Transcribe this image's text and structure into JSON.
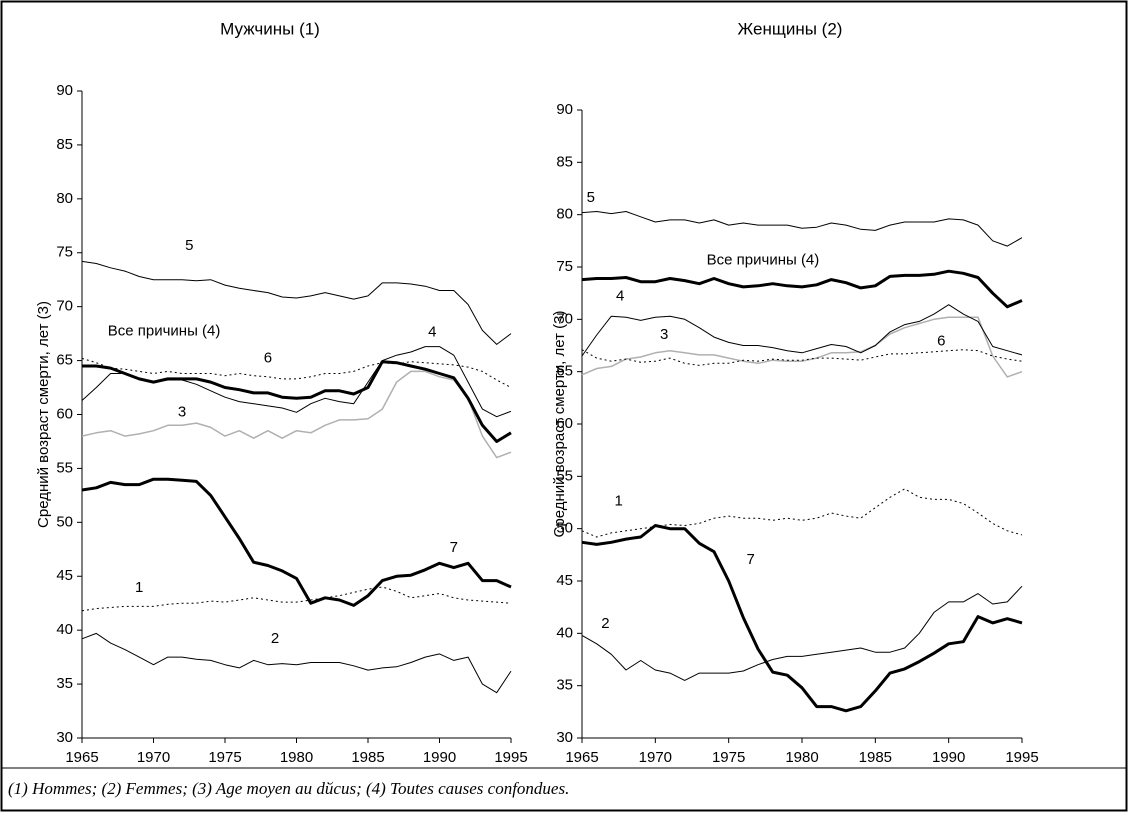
{
  "chart_data": [
    {
      "type": "line",
      "title": "Мужчины (1)",
      "ylabel": "Средний возраст смерти, лет (3)",
      "x": [
        1965,
        1966,
        1967,
        1968,
        1969,
        1970,
        1971,
        1972,
        1973,
        1974,
        1975,
        1976,
        1977,
        1978,
        1979,
        1980,
        1981,
        1982,
        1983,
        1984,
        1985,
        1986,
        1987,
        1988,
        1989,
        1990,
        1991,
        1992,
        1993,
        1994,
        1995
      ],
      "xlim": [
        1965,
        1995
      ],
      "xticks": [
        1965,
        1970,
        1975,
        1980,
        1985,
        1990,
        1995
      ],
      "ylim": [
        30,
        90
      ],
      "yticks": [
        30,
        35,
        40,
        45,
        50,
        55,
        60,
        65,
        70,
        75,
        80,
        85,
        90
      ],
      "annotations": [
        {
          "text": "Все причины (4)"
        }
      ],
      "series": [
        {
          "name": "1",
          "color": "#000000",
          "dash": "dotted",
          "linewidth": 1,
          "values": [
            41.8,
            42,
            42.1,
            42.2,
            42.2,
            42.2,
            42.4,
            42.5,
            42.5,
            42.7,
            42.6,
            42.8,
            43,
            42.8,
            42.6,
            42.6,
            42.8,
            43,
            43.2,
            43.5,
            43.8,
            44,
            43.6,
            43,
            43.2,
            43.4,
            43,
            42.8,
            42.7,
            42.6,
            42.5
          ]
        },
        {
          "name": "2",
          "color": "#000000",
          "linewidth": 1,
          "values": [
            39.2,
            39.7,
            38.8,
            38.2,
            37.5,
            36.8,
            37.5,
            37.5,
            37.3,
            37.2,
            36.8,
            36.5,
            37.2,
            36.8,
            36.9,
            36.8,
            37,
            37,
            37,
            36.7,
            36.3,
            36.5,
            36.6,
            37,
            37.5,
            37.8,
            37.2,
            37.5,
            35,
            34.2,
            36.2
          ]
        },
        {
          "name": "3",
          "color": "#b0b0b0",
          "linewidth": 1.5,
          "values": [
            58,
            58.3,
            58.5,
            58,
            58.2,
            58.5,
            59,
            59,
            59.2,
            58.8,
            58,
            58.5,
            57.8,
            58.5,
            57.8,
            58.5,
            58.3,
            59,
            59.5,
            59.5,
            59.6,
            60.5,
            63,
            64,
            64,
            63.5,
            63.2,
            61.5,
            58,
            56,
            56.5
          ]
        },
        {
          "name": "4",
          "color": "#000000",
          "linewidth": 3,
          "values": [
            64.5,
            64.5,
            64.3,
            63.8,
            63.3,
            63,
            63.3,
            63.3,
            63.3,
            63,
            62.5,
            62.3,
            62,
            62,
            61.6,
            61.5,
            61.6,
            62.2,
            62.2,
            61.9,
            62.5,
            64.9,
            64.8,
            64.5,
            64.2,
            63.8,
            63.4,
            61.5,
            59,
            57.5,
            58.3
          ]
        },
        {
          "name": "5",
          "color": "#000000",
          "linewidth": 1,
          "values": [
            74.2,
            74,
            73.6,
            73.3,
            72.8,
            72.5,
            72.5,
            72.5,
            72.4,
            72.5,
            72,
            71.7,
            71.5,
            71.3,
            70.9,
            70.8,
            71,
            71.3,
            71,
            70.7,
            71,
            72.2,
            72.2,
            72.1,
            71.9,
            71.5,
            71.5,
            70.2,
            67.8,
            66.5,
            67.5
          ]
        },
        {
          "name": "6",
          "color": "#000000",
          "dash": "dotted",
          "linewidth": 1,
          "values": [
            65.2,
            64.8,
            64.3,
            64.2,
            64,
            63.8,
            64,
            63.8,
            63.8,
            63.8,
            63.6,
            63.8,
            63.6,
            63.5,
            63.3,
            63.3,
            63.5,
            63.8,
            63.8,
            64,
            64.5,
            64.8,
            64.7,
            64.9,
            64.8,
            64.7,
            64.6,
            64.4,
            64,
            63.2,
            62.5
          ]
        },
        {
          "name": "7",
          "color": "#000000",
          "linewidth": 3,
          "values": [
            53,
            53.2,
            53.7,
            53.5,
            53.5,
            54,
            54,
            53.9,
            53.8,
            52.5,
            50.5,
            48.5,
            46.3,
            46,
            45.5,
            44.8,
            42.5,
            43,
            42.8,
            42.3,
            43.2,
            44.6,
            45,
            45.1,
            45.6,
            46.2,
            45.8,
            46.2,
            44.6,
            44.6,
            44
          ]
        },
        {
          "color": "#000000",
          "linewidth": 1,
          "values": [
            61.3,
            62.5,
            63.8,
            63.8,
            63.3,
            63,
            63.2,
            63.2,
            62.8,
            62.2,
            61.6,
            61.2,
            61,
            60.8,
            60.6,
            60.2,
            61,
            61.5,
            61.2,
            61,
            63,
            65,
            65.5,
            65.8,
            66.3,
            66.3,
            65.5,
            63,
            60.5,
            59.8,
            60.3
          ]
        }
      ]
    },
    {
      "type": "line",
      "title": "Женщины  (2)",
      "ylabel": "Средний возраст смерти, лет (3)",
      "x": [
        1965,
        1966,
        1967,
        1968,
        1969,
        1970,
        1971,
        1972,
        1973,
        1974,
        1975,
        1976,
        1977,
        1978,
        1979,
        1980,
        1981,
        1982,
        1983,
        1984,
        1985,
        1986,
        1987,
        1988,
        1989,
        1990,
        1991,
        1992,
        1993,
        1994,
        1995
      ],
      "xlim": [
        1965,
        1995
      ],
      "xticks": [
        1965,
        1970,
        1975,
        1980,
        1985,
        1990,
        1995
      ],
      "ylim": [
        30,
        90
      ],
      "yticks": [
        30,
        35,
        40,
        45,
        50,
        55,
        60,
        65,
        70,
        75,
        80,
        85,
        90
      ],
      "annotations": [
        {
          "text": "Все причины (4)"
        }
      ],
      "series": [
        {
          "name": "1",
          "color": "#000000",
          "dash": "dotted",
          "linewidth": 1,
          "values": [
            49.8,
            49.2,
            49.6,
            49.8,
            50,
            50.2,
            50.4,
            50.3,
            50.5,
            51,
            51.2,
            51,
            51,
            50.8,
            51,
            50.8,
            51,
            51.5,
            51.2,
            51,
            52,
            53,
            53.8,
            53,
            52.8,
            52.8,
            52.4,
            51.5,
            50.5,
            49.8,
            49.4
          ]
        },
        {
          "name": "2",
          "color": "#000000",
          "linewidth": 1,
          "values": [
            39.8,
            39,
            38,
            36.5,
            37.4,
            36.5,
            36.2,
            35.5,
            36.2,
            36.2,
            36.2,
            36.4,
            37,
            37.5,
            37.8,
            37.8,
            38,
            38.2,
            38.4,
            38.6,
            38.2,
            38.2,
            38.6,
            40,
            42,
            43,
            43,
            43.8,
            42.8,
            43,
            44.5
          ]
        },
        {
          "name": "3",
          "color": "#b0b0b0",
          "linewidth": 1.5,
          "values": [
            64.7,
            65.3,
            65.5,
            66.2,
            66.4,
            66.8,
            67,
            66.8,
            66.6,
            66.6,
            66.3,
            66,
            65.8,
            66.1,
            66,
            66,
            66.3,
            66.8,
            66.8,
            66.9,
            67.5,
            68.6,
            69.2,
            69.6,
            70,
            70.2,
            70.2,
            70.2,
            66.5,
            64.5,
            65
          ]
        },
        {
          "name": "4",
          "color": "#000000",
          "linewidth": 3,
          "values": [
            73.8,
            73.9,
            73.9,
            74,
            73.6,
            73.6,
            73.9,
            73.7,
            73.4,
            73.9,
            73.4,
            73.1,
            73.2,
            73.4,
            73.2,
            73.1,
            73.3,
            73.8,
            73.5,
            73,
            73.2,
            74.1,
            74.2,
            74.2,
            74.3,
            74.6,
            74.4,
            74,
            72.5,
            71.2,
            71.8
          ]
        },
        {
          "name": "5",
          "color": "#000000",
          "linewidth": 1,
          "values": [
            80.2,
            80.3,
            80.1,
            80.3,
            79.8,
            79.3,
            79.5,
            79.5,
            79.2,
            79.5,
            79,
            79.2,
            79,
            79,
            79,
            78.7,
            78.8,
            79.2,
            79,
            78.6,
            78.5,
            79,
            79.3,
            79.3,
            79.3,
            79.6,
            79.5,
            79,
            77.5,
            77,
            77.8
          ]
        },
        {
          "name": "6",
          "color": "#000000",
          "dash": "dotted",
          "linewidth": 1,
          "values": [
            67.1,
            66.3,
            66,
            66.2,
            65.9,
            66,
            66.3,
            65.8,
            65.6,
            65.8,
            65.8,
            66.1,
            66,
            66.2,
            66.1,
            66.1,
            66.3,
            66.3,
            66.2,
            66.1,
            66.4,
            66.7,
            66.7,
            66.8,
            66.9,
            67,
            67.1,
            67,
            66.5,
            66.2,
            66
          ]
        },
        {
          "name": "7",
          "color": "#000000",
          "linewidth": 3,
          "values": [
            48.7,
            48.5,
            48.7,
            49,
            49.2,
            50.3,
            50,
            50,
            48.6,
            47.8,
            45,
            41.5,
            38.5,
            36.3,
            36,
            34.8,
            33,
            33,
            32.6,
            33,
            34.5,
            36.2,
            36.6,
            37.3,
            38.1,
            39,
            39.2,
            41.6,
            41,
            41.4,
            41
          ]
        },
        {
          "color": "#000000",
          "linewidth": 1,
          "values": [
            66.5,
            68.5,
            70.3,
            70.2,
            69.9,
            70.2,
            70.3,
            70,
            69.2,
            68.3,
            67.8,
            67.5,
            67.5,
            67.3,
            67,
            66.8,
            67.2,
            67.6,
            67.4,
            66.8,
            67.5,
            68.8,
            69.5,
            69.8,
            70.5,
            71.4,
            70.5,
            69.8,
            67.4,
            67,
            66.6
          ]
        }
      ]
    }
  ],
  "caption": "(1) Hommes;  (2) Femmes; (3) Age moyen au dйcus; (4) Toutes causes confondues."
}
